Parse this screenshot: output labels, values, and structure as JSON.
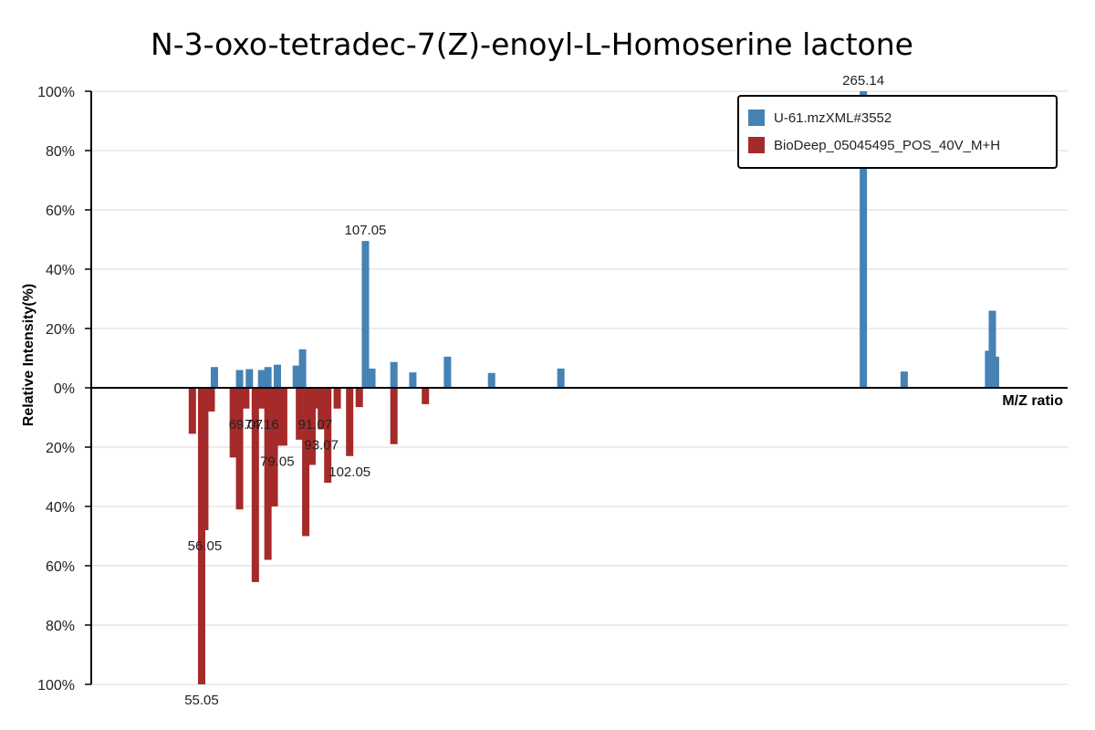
{
  "chart_data": {
    "type": "bar",
    "title": "N-3-oxo-tetradec-7(Z)-enoyl-L-Homoserine lactone",
    "xlabel": "M/Z ratio",
    "ylabel": "Relative Intensity(%)",
    "ylim": [
      -100,
      100
    ],
    "yticks": [
      "100%",
      "80%",
      "60%",
      "40%",
      "20%",
      "0%",
      "20%",
      "40%",
      "60%",
      "80%",
      "100%"
    ],
    "xlim": [
      20,
      330
    ],
    "grid": true,
    "legend_position": "top-right",
    "colors": {
      "series0": "#4682b4",
      "series1": "#a52a2a"
    },
    "series": [
      {
        "name": "U-61.mzXML#3552",
        "color": "#4682b4",
        "points": [
          {
            "x": 59.1,
            "y": 7
          },
          {
            "x": 67.1,
            "y": 6
          },
          {
            "x": 70.2,
            "y": 6.3
          },
          {
            "x": 74.1,
            "y": 6
          },
          {
            "x": 76.1,
            "y": 7
          },
          {
            "x": 79.1,
            "y": 7.8
          },
          {
            "x": 85.1,
            "y": 7.5
          },
          {
            "x": 87.1,
            "y": 13
          },
          {
            "x": 107.05,
            "y": 49.5,
            "label": "107.05"
          },
          {
            "x": 109.1,
            "y": 6.5
          },
          {
            "x": 116.1,
            "y": 8.7
          },
          {
            "x": 122.1,
            "y": 5.2
          },
          {
            "x": 133.1,
            "y": 10.5
          },
          {
            "x": 147.1,
            "y": 5
          },
          {
            "x": 169.1,
            "y": 6.5
          },
          {
            "x": 265.14,
            "y": 100,
            "label": "265.14"
          },
          {
            "x": 278.1,
            "y": 5.5
          },
          {
            "x": 304.9,
            "y": 12.5
          },
          {
            "x": 306.1,
            "y": 26
          },
          {
            "x": 307.1,
            "y": 10.5
          }
        ]
      },
      {
        "name": "BioDeep_05045495_POS_40V_M+H",
        "color": "#a52a2a",
        "points": [
          {
            "x": 52.1,
            "y": 15.5
          },
          {
            "x": 55.05,
            "y": 100,
            "label": "55.05"
          },
          {
            "x": 56.05,
            "y": 48,
            "label": "56.05"
          },
          {
            "x": 58.1,
            "y": 8
          },
          {
            "x": 65.1,
            "y": 23.5
          },
          {
            "x": 67.1,
            "y": 41
          },
          {
            "x": 69.07,
            "y": 7,
            "label": "69.07"
          },
          {
            "x": 72.1,
            "y": 65.5
          },
          {
            "x": 74.16,
            "y": 7,
            "label": "74.16"
          },
          {
            "x": 76.1,
            "y": 58
          },
          {
            "x": 78.1,
            "y": 40
          },
          {
            "x": 79.05,
            "y": 19.5,
            "label": "79.05"
          },
          {
            "x": 81.1,
            "y": 19.5
          },
          {
            "x": 86.1,
            "y": 17.5
          },
          {
            "x": 88.1,
            "y": 50
          },
          {
            "x": 90.1,
            "y": 26
          },
          {
            "x": 91.07,
            "y": 7,
            "label": "91.07"
          },
          {
            "x": 93.07,
            "y": 14,
            "label": "93.07"
          },
          {
            "x": 95.1,
            "y": 32
          },
          {
            "x": 98.1,
            "y": 7
          },
          {
            "x": 102.05,
            "y": 23,
            "label": "102.05"
          },
          {
            "x": 105.1,
            "y": 6.5
          },
          {
            "x": 116.1,
            "y": 19
          },
          {
            "x": 126.1,
            "y": 5.5
          }
        ]
      }
    ]
  }
}
